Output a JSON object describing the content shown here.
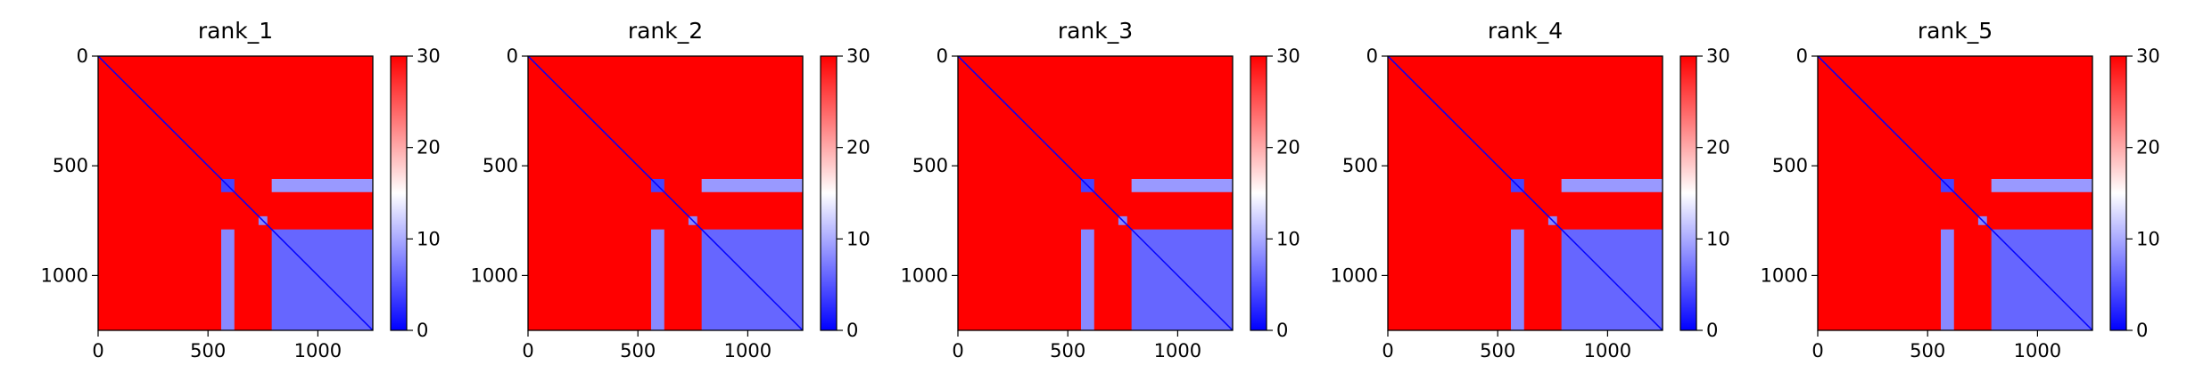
{
  "chart_data": [
    {
      "type": "heatmap",
      "title": "rank_1",
      "xlim": [
        0,
        1250
      ],
      "ylim": [
        1250,
        0
      ],
      "xticks": [
        0,
        500,
        1000
      ],
      "yticks": [
        0,
        500,
        1000
      ],
      "colorbar": {
        "min": 0,
        "max": 30,
        "ticks": [
          0,
          10,
          20,
          30
        ],
        "colormap": "bwr"
      },
      "blocks": [
        {
          "x": [
            560,
            620
          ],
          "y": [
            560,
            620
          ],
          "value": 4
        },
        {
          "x": [
            730,
            770
          ],
          "y": [
            730,
            770
          ],
          "value": 8
        },
        {
          "x": [
            790,
            1250
          ],
          "y": [
            790,
            1250
          ],
          "value": 6
        },
        {
          "x": [
            560,
            620
          ],
          "y": [
            790,
            1250
          ],
          "value": 8
        },
        {
          "x": [
            790,
            1250
          ],
          "y": [
            560,
            620
          ],
          "value": 9
        }
      ]
    },
    {
      "type": "heatmap",
      "title": "rank_2",
      "xlim": [
        0,
        1250
      ],
      "ylim": [
        1250,
        0
      ],
      "xticks": [
        0,
        500,
        1000
      ],
      "yticks": [
        0,
        500,
        1000
      ],
      "colorbar": {
        "min": 0,
        "max": 30,
        "ticks": [
          0,
          10,
          20,
          30
        ],
        "colormap": "bwr"
      },
      "blocks": [
        {
          "x": [
            560,
            620
          ],
          "y": [
            560,
            620
          ],
          "value": 4
        },
        {
          "x": [
            730,
            770
          ],
          "y": [
            730,
            770
          ],
          "value": 8
        },
        {
          "x": [
            790,
            1250
          ],
          "y": [
            790,
            1250
          ],
          "value": 6
        },
        {
          "x": [
            560,
            620
          ],
          "y": [
            790,
            1250
          ],
          "value": 8
        },
        {
          "x": [
            790,
            1250
          ],
          "y": [
            560,
            620
          ],
          "value": 9
        }
      ]
    },
    {
      "type": "heatmap",
      "title": "rank_3",
      "xlim": [
        0,
        1250
      ],
      "ylim": [
        1250,
        0
      ],
      "xticks": [
        0,
        500,
        1000
      ],
      "yticks": [
        0,
        500,
        1000
      ],
      "colorbar": {
        "min": 0,
        "max": 30,
        "ticks": [
          0,
          10,
          20,
          30
        ],
        "colormap": "bwr"
      },
      "blocks": [
        {
          "x": [
            560,
            620
          ],
          "y": [
            560,
            620
          ],
          "value": 4
        },
        {
          "x": [
            730,
            770
          ],
          "y": [
            730,
            770
          ],
          "value": 8
        },
        {
          "x": [
            790,
            1250
          ],
          "y": [
            790,
            1250
          ],
          "value": 6
        },
        {
          "x": [
            560,
            620
          ],
          "y": [
            790,
            1250
          ],
          "value": 8
        },
        {
          "x": [
            790,
            1250
          ],
          "y": [
            560,
            620
          ],
          "value": 9
        }
      ]
    },
    {
      "type": "heatmap",
      "title": "rank_4",
      "xlim": [
        0,
        1250
      ],
      "ylim": [
        1250,
        0
      ],
      "xticks": [
        0,
        500,
        1000
      ],
      "yticks": [
        0,
        500,
        1000
      ],
      "colorbar": {
        "min": 0,
        "max": 30,
        "ticks": [
          0,
          10,
          20,
          30
        ],
        "colormap": "bwr"
      },
      "blocks": [
        {
          "x": [
            560,
            620
          ],
          "y": [
            560,
            620
          ],
          "value": 4
        },
        {
          "x": [
            730,
            770
          ],
          "y": [
            730,
            770
          ],
          "value": 8
        },
        {
          "x": [
            790,
            1250
          ],
          "y": [
            790,
            1250
          ],
          "value": 6
        },
        {
          "x": [
            560,
            620
          ],
          "y": [
            790,
            1250
          ],
          "value": 8
        },
        {
          "x": [
            790,
            1250
          ],
          "y": [
            560,
            620
          ],
          "value": 9
        }
      ]
    },
    {
      "type": "heatmap",
      "title": "rank_5",
      "xlim": [
        0,
        1250
      ],
      "ylim": [
        1250,
        0
      ],
      "xticks": [
        0,
        500,
        1000
      ],
      "yticks": [
        0,
        500,
        1000
      ],
      "colorbar": {
        "min": 0,
        "max": 30,
        "ticks": [
          0,
          10,
          20,
          30
        ],
        "colormap": "bwr"
      },
      "blocks": [
        {
          "x": [
            560,
            620
          ],
          "y": [
            560,
            620
          ],
          "value": 4
        },
        {
          "x": [
            730,
            770
          ],
          "y": [
            730,
            770
          ],
          "value": 8
        },
        {
          "x": [
            790,
            1250
          ],
          "y": [
            790,
            1250
          ],
          "value": 6
        },
        {
          "x": [
            560,
            620
          ],
          "y": [
            790,
            1250
          ],
          "value": 8
        },
        {
          "x": [
            790,
            1250
          ],
          "y": [
            560,
            620
          ],
          "value": 9
        }
      ]
    }
  ],
  "colors": {
    "low": "#0000ff",
    "mid": "#ffffff",
    "high": "#ff0000"
  }
}
